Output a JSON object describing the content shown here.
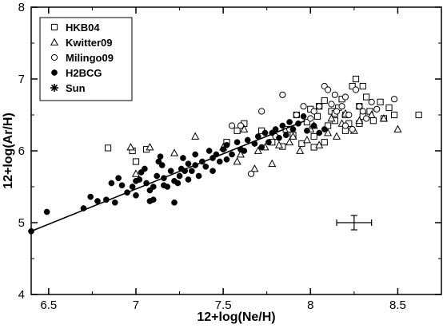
{
  "chart_data": {
    "type": "scatter",
    "xlabel": "12+log(Ne/H)",
    "ylabel": "12+log(Ar/H)",
    "xlim": [
      6.4,
      8.75
    ],
    "ylim": [
      4,
      8
    ],
    "xticks": [
      6.5,
      7,
      7.5,
      8,
      8.5
    ],
    "xtick_labels": [
      "6.5",
      "7",
      "7.5",
      "8",
      "8.5"
    ],
    "yticks": [
      4,
      5,
      6,
      7,
      8
    ],
    "ytick_labels": [
      "4",
      "5",
      "6",
      "7",
      "8"
    ],
    "grid": false,
    "legend_position": "top-left",
    "series": [
      {
        "name": "HKB04",
        "marker": "square",
        "points": [
          [
            6.84,
            6.04
          ],
          [
            6.98,
            6.0
          ],
          [
            7.06,
            6.02
          ],
          [
            7.0,
            5.85
          ],
          [
            7.52,
            6.12
          ],
          [
            7.58,
            6.28
          ],
          [
            7.62,
            6.38
          ],
          [
            7.72,
            6.28
          ],
          [
            7.78,
            6.12
          ],
          [
            7.84,
            6.06
          ],
          [
            7.86,
            6.3
          ],
          [
            7.9,
            6.22
          ],
          [
            7.92,
            6.5
          ],
          [
            7.95,
            6.1
          ],
          [
            7.98,
            6.4
          ],
          [
            8.0,
            6.58
          ],
          [
            8.02,
            6.2
          ],
          [
            8.04,
            6.48
          ],
          [
            8.05,
            6.62
          ],
          [
            8.08,
            6.7
          ],
          [
            8.1,
            6.35
          ],
          [
            8.12,
            6.55
          ],
          [
            8.14,
            6.42
          ],
          [
            8.16,
            6.6
          ],
          [
            8.18,
            6.72
          ],
          [
            8.2,
            6.5
          ],
          [
            8.22,
            6.38
          ],
          [
            8.24,
            6.9
          ],
          [
            8.26,
            7.0
          ],
          [
            8.28,
            6.62
          ],
          [
            8.3,
            6.48
          ],
          [
            8.32,
            6.75
          ],
          [
            8.34,
            6.55
          ],
          [
            8.36,
            6.42
          ],
          [
            8.4,
            6.68
          ],
          [
            8.42,
            6.45
          ],
          [
            8.45,
            6.6
          ],
          [
            8.48,
            6.5
          ],
          [
            8.62,
            6.5
          ],
          [
            8.02,
            6.05
          ],
          [
            8.08,
            6.12
          ],
          [
            8.2,
            6.28
          ],
          [
            8.14,
            6.52
          ],
          [
            8.3,
            6.9
          ],
          [
            8.28,
            6.38
          ]
        ]
      },
      {
        "name": "Kwitter09",
        "marker": "triangle",
        "points": [
          [
            6.97,
            6.05
          ],
          [
            7.0,
            5.68
          ],
          [
            7.08,
            6.05
          ],
          [
            7.22,
            5.97
          ],
          [
            7.34,
            6.2
          ],
          [
            7.5,
            6.05
          ],
          [
            7.58,
            5.85
          ],
          [
            7.6,
            5.95
          ],
          [
            7.62,
            6.3
          ],
          [
            7.68,
            5.75
          ],
          [
            7.7,
            6.0
          ],
          [
            7.74,
            6.05
          ],
          [
            7.78,
            5.82
          ],
          [
            7.82,
            6.08
          ],
          [
            7.88,
            6.12
          ],
          [
            7.9,
            6.2
          ],
          [
            7.94,
            6.0
          ],
          [
            7.98,
            6.15
          ],
          [
            8.0,
            6.3
          ],
          [
            8.02,
            6.35
          ],
          [
            8.05,
            6.08
          ],
          [
            8.1,
            6.25
          ],
          [
            8.12,
            6.45
          ],
          [
            8.15,
            6.2
          ],
          [
            8.18,
            6.38
          ],
          [
            8.2,
            6.52
          ],
          [
            8.25,
            6.28
          ],
          [
            8.28,
            6.42
          ],
          [
            8.35,
            6.5
          ],
          [
            8.42,
            6.45
          ],
          [
            8.5,
            6.3
          ]
        ]
      },
      {
        "name": "Milingo09",
        "marker": "circle-open",
        "points": [
          [
            7.55,
            6.35
          ],
          [
            7.6,
            6.35
          ],
          [
            7.66,
            5.68
          ],
          [
            7.72,
            6.55
          ],
          [
            7.8,
            6.2
          ],
          [
            7.84,
            6.78
          ],
          [
            7.88,
            6.3
          ],
          [
            7.92,
            6.5
          ],
          [
            7.96,
            6.62
          ],
          [
            8.0,
            6.45
          ],
          [
            8.02,
            6.55
          ],
          [
            8.05,
            6.62
          ],
          [
            8.08,
            6.9
          ],
          [
            8.1,
            6.85
          ],
          [
            8.12,
            6.65
          ],
          [
            8.15,
            6.55
          ],
          [
            8.18,
            6.62
          ],
          [
            8.2,
            6.75
          ],
          [
            8.22,
            6.5
          ],
          [
            8.24,
            6.3
          ],
          [
            8.26,
            6.85
          ],
          [
            8.28,
            6.62
          ],
          [
            8.3,
            6.55
          ],
          [
            8.32,
            6.45
          ],
          [
            8.35,
            6.68
          ],
          [
            8.38,
            6.58
          ],
          [
            8.48,
            6.72
          ],
          [
            8.2,
            6.35
          ],
          [
            8.14,
            6.78
          ]
        ]
      },
      {
        "name": "H2BCG",
        "marker": "circle-filled",
        "points": [
          [
            6.4,
            4.88
          ],
          [
            6.49,
            5.15
          ],
          [
            6.7,
            5.2
          ],
          [
            6.74,
            5.36
          ],
          [
            6.78,
            5.3
          ],
          [
            6.83,
            5.32
          ],
          [
            6.86,
            5.55
          ],
          [
            6.88,
            5.28
          ],
          [
            6.9,
            5.62
          ],
          [
            6.95,
            5.42
          ],
          [
            6.98,
            5.5
          ],
          [
            7.0,
            5.38
          ],
          [
            7.02,
            5.6
          ],
          [
            7.03,
            5.7
          ],
          [
            7.05,
            5.75
          ],
          [
            7.06,
            5.55
          ],
          [
            7.08,
            5.3
          ],
          [
            7.1,
            5.5
          ],
          [
            7.12,
            5.65
          ],
          [
            7.13,
            5.85
          ],
          [
            7.15,
            5.8
          ],
          [
            7.16,
            5.62
          ],
          [
            7.18,
            5.5
          ],
          [
            7.2,
            5.72
          ],
          [
            7.22,
            5.58
          ],
          [
            7.24,
            5.55
          ],
          [
            7.25,
            5.65
          ],
          [
            7.27,
            5.9
          ],
          [
            7.28,
            5.72
          ],
          [
            7.3,
            5.82
          ],
          [
            7.32,
            5.72
          ],
          [
            7.34,
            5.95
          ],
          [
            7.36,
            5.65
          ],
          [
            7.38,
            5.85
          ],
          [
            7.4,
            5.78
          ],
          [
            7.42,
            6.0
          ],
          [
            7.44,
            5.9
          ],
          [
            7.46,
            5.95
          ],
          [
            7.48,
            5.85
          ],
          [
            7.5,
            6.02
          ],
          [
            7.52,
            6.08
          ],
          [
            7.55,
            5.95
          ],
          [
            7.58,
            6.12
          ],
          [
            7.6,
            6.02
          ],
          [
            7.64,
            6.15
          ],
          [
            7.68,
            6.1
          ],
          [
            7.7,
            6.2
          ],
          [
            7.72,
            6.05
          ],
          [
            7.74,
            6.25
          ],
          [
            7.76,
            6.12
          ],
          [
            7.78,
            6.25
          ],
          [
            7.8,
            6.3
          ],
          [
            7.82,
            6.18
          ],
          [
            7.84,
            6.35
          ],
          [
            7.86,
            6.22
          ],
          [
            7.88,
            6.4
          ],
          [
            7.9,
            6.3
          ],
          [
            7.93,
            6.38
          ],
          [
            7.96,
            6.48
          ],
          [
            7.98,
            6.28
          ],
          [
            8.02,
            6.35
          ],
          [
            8.05,
            6.25
          ],
          [
            8.08,
            6.3
          ],
          [
            7.1,
            5.32
          ],
          [
            7.16,
            5.52
          ],
          [
            7.22,
            5.28
          ],
          [
            7.3,
            5.6
          ],
          [
            7.0,
            5.58
          ],
          [
            7.34,
            5.8
          ],
          [
            7.44,
            5.72
          ],
          [
            7.52,
            5.88
          ],
          [
            7.62,
            6.0
          ],
          [
            6.92,
            5.52
          ],
          [
            7.08,
            5.45
          ],
          [
            7.14,
            5.92
          ],
          [
            7.26,
            5.75
          ]
        ]
      }
    ],
    "sun_label": "Sun",
    "fit_line": {
      "x": [
        6.4,
        7.97
      ],
      "y": [
        4.88,
        6.42
      ]
    },
    "error_bar": {
      "x": 8.25,
      "y": 5.0,
      "x_err": 0.1,
      "y_err": 0.1
    }
  }
}
